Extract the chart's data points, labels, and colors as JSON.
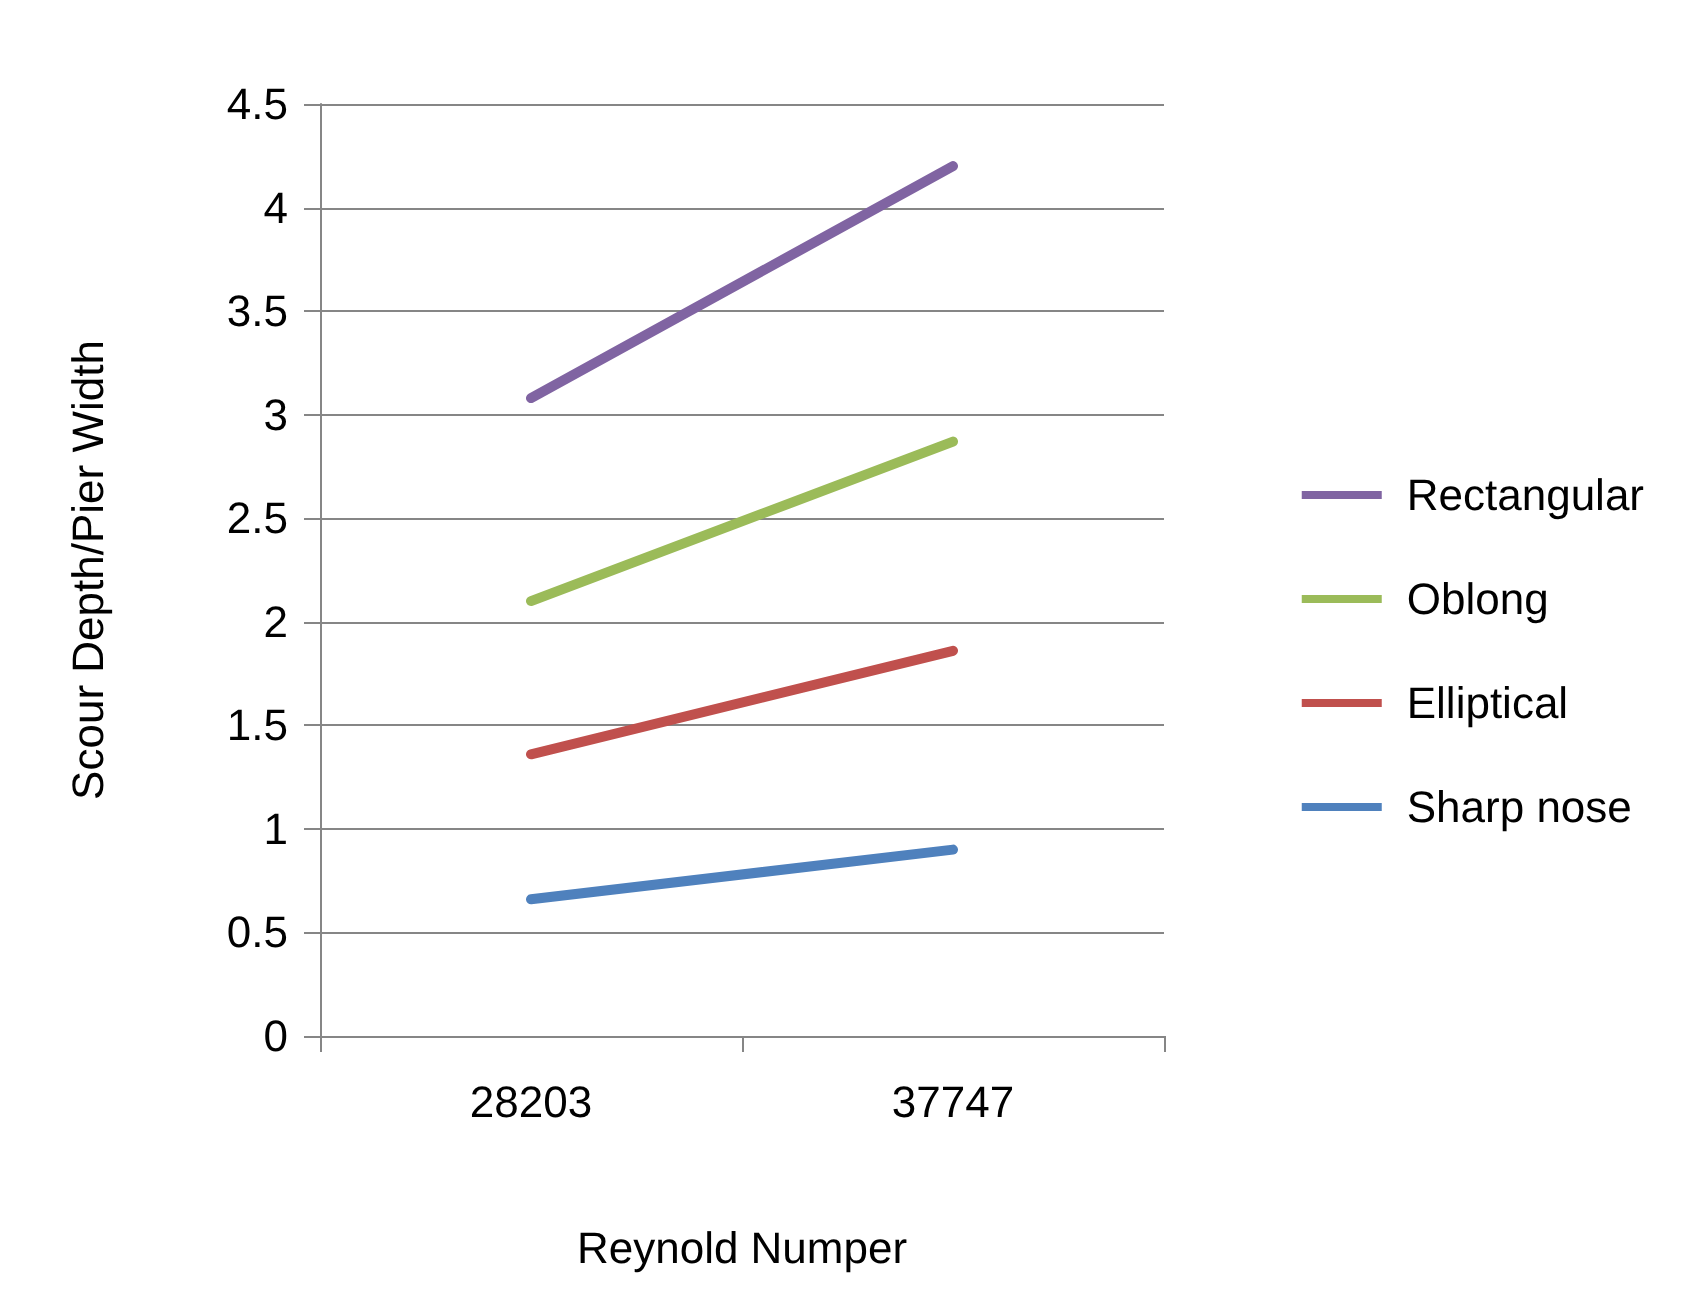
{
  "chart_data": {
    "type": "line",
    "xlabel": "Reynold Numper",
    "ylabel": "Scour Depth/Pier Width",
    "categories": [
      "28203",
      "37747"
    ],
    "series": [
      {
        "name": "Rectangular",
        "color": "#8064a2",
        "values": [
          3.08,
          4.2
        ]
      },
      {
        "name": "Oblong",
        "color": "#9bbb59",
        "values": [
          2.1,
          2.87
        ]
      },
      {
        "name": "Elliptical",
        "color": "#c0504d",
        "values": [
          1.36,
          1.86
        ]
      },
      {
        "name": "Sharp nose",
        "color": "#4f81bd",
        "values": [
          0.66,
          0.9
        ]
      }
    ],
    "ylim": [
      0,
      4.5
    ],
    "yticks": [
      0,
      0.5,
      1,
      1.5,
      2,
      2.5,
      3,
      3.5,
      4,
      4.5
    ],
    "grid": "y",
    "legend": "right",
    "marker": "none",
    "line_style": "solid"
  }
}
